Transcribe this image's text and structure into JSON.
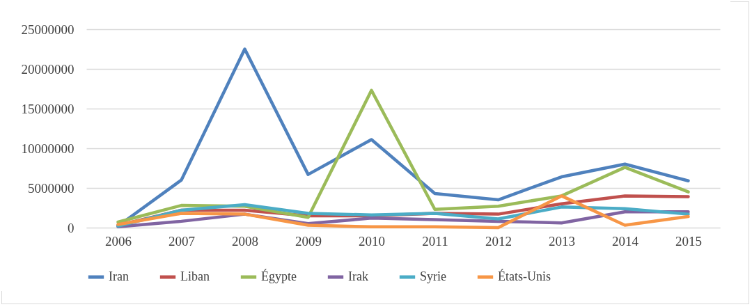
{
  "chart_data": {
    "type": "line",
    "categories": [
      "2006",
      "2007",
      "2008",
      "2009",
      "2010",
      "2011",
      "2012",
      "2013",
      "2014",
      "2015"
    ],
    "series": [
      {
        "name": "Iran",
        "color": "#4f81bd",
        "values": [
          200000,
          6000000,
          22500000,
          6700000,
          11100000,
          4300000,
          3500000,
          6400000,
          8000000,
          5900000
        ]
      },
      {
        "name": "Liban",
        "color": "#c0504d",
        "values": [
          300000,
          2200000,
          2200000,
          1500000,
          1500000,
          1800000,
          1700000,
          3000000,
          4000000,
          3900000
        ]
      },
      {
        "name": "Égypte",
        "color": "#9bbb59",
        "values": [
          700000,
          2800000,
          2700000,
          1300000,
          17300000,
          2300000,
          2700000,
          4000000,
          7600000,
          4500000
        ]
      },
      {
        "name": "Irak",
        "color": "#8064a2",
        "values": [
          100000,
          800000,
          1700000,
          500000,
          1200000,
          1000000,
          800000,
          600000,
          2000000,
          2000000
        ]
      },
      {
        "name": "Syrie",
        "color": "#4bacc6",
        "values": [
          200000,
          2200000,
          2900000,
          1800000,
          1600000,
          1800000,
          1100000,
          2600000,
          2400000,
          1700000
        ]
      },
      {
        "name": "États-Unis",
        "color": "#f79646",
        "values": [
          400000,
          1800000,
          1700000,
          300000,
          100000,
          100000,
          0,
          4000000,
          300000,
          1400000
        ]
      }
    ],
    "ylim": [
      0,
      25000000
    ],
    "yticks": [
      0,
      5000000,
      10000000,
      15000000,
      20000000,
      25000000
    ],
    "grid": "y",
    "legend": "bottom",
    "marker": "none",
    "line_style": "solid"
  }
}
